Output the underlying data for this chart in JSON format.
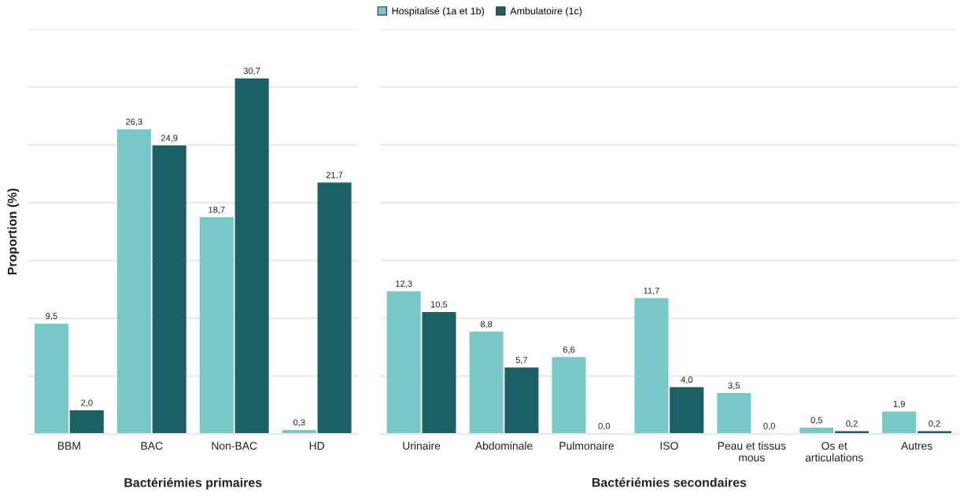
{
  "chart_data": [
    {
      "type": "bar",
      "xlabel": "Bactériémies primaires",
      "ylabel": "Proportion (%)",
      "categories": [
        "BBM",
        "BAC",
        "Non-BAC",
        "HD"
      ],
      "series": [
        {
          "name": "Hospitalisé (1a et 1b)",
          "color": "#79c8c8",
          "values": [
            9.5,
            26.3,
            18.7,
            0.3
          ],
          "value_labels": [
            "9,5",
            "26,3",
            "18,7",
            "0,3"
          ]
        },
        {
          "name": "Ambulatoire (1c)",
          "color": "#1b6064",
          "values": [
            2.0,
            24.9,
            30.7,
            21.7
          ],
          "value_labels": [
            "2,0",
            "24,9",
            "30,7",
            "21,7"
          ]
        }
      ],
      "ylim": [
        0,
        35
      ],
      "yticks": [
        {
          "value": 0,
          "label": null
        },
        {
          "value": 5,
          "label": null
        },
        {
          "value": 10,
          "label": null
        },
        {
          "value": 15,
          "label": null
        },
        {
          "value": 20,
          "label": null
        },
        {
          "value": 25,
          "label": null
        },
        {
          "value": 30,
          "label": null
        },
        {
          "value": 35,
          "label": null
        }
      ],
      "grid": "y",
      "legend": "top",
      "tick_labels": "x"
    },
    {
      "type": "bar",
      "xlabel": "Bactériémies secondaires",
      "categories": [
        "Urinaire",
        "Abdominale",
        "Pulmonaire",
        "ISO",
        "Peau et tissus\nmous",
        "Os et\narticulations",
        "Autres"
      ],
      "series": [
        {
          "color": "#79c8c8",
          "values": [
            12.3,
            8.8,
            6.6,
            11.7,
            3.5,
            0.5,
            1.9
          ],
          "value_labels": [
            "12,3",
            "8,8",
            "6,6",
            "11,7",
            "3,5",
            "0,5",
            "1,9"
          ]
        },
        {
          "color": "#1b6064",
          "values": [
            10.5,
            5.7,
            0.0,
            4.0,
            0.0,
            0.2,
            0.2
          ],
          "value_labels": [
            "10,5",
            "5,7",
            "0,0",
            "4,0",
            "0,0",
            "0,2",
            "0,2"
          ]
        }
      ],
      "ylim": [
        0,
        35
      ],
      "yticks": [
        {
          "value": 0,
          "label": null
        },
        {
          "value": 5,
          "label": null
        },
        {
          "value": 10,
          "label": null
        },
        {
          "value": 15,
          "label": null
        },
        {
          "value": 20,
          "label": null
        },
        {
          "value": 25,
          "label": null
        },
        {
          "value": 30,
          "label": null
        },
        {
          "value": 35,
          "label": null
        }
      ],
      "grid": "y",
      "tick_labels": "x"
    }
  ]
}
